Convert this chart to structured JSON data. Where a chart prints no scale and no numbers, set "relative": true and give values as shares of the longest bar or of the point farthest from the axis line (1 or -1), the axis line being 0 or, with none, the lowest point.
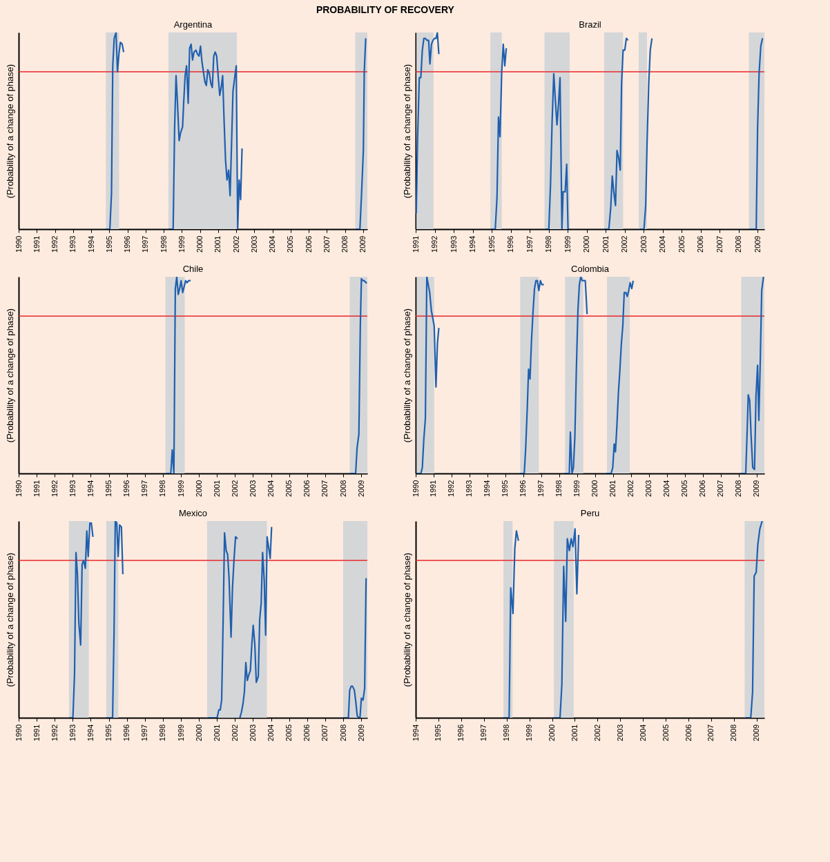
{
  "chart_data": [
    {
      "type": "line",
      "title": "Argentina",
      "ylabel": "(Probability of a change of phase)",
      "annotations": [
        "PROBABILITY OF RECOVERY"
      ],
      "relative": true,
      "xlim": [
        1990,
        2009.23
      ],
      "xticks": [
        1990,
        1991,
        1992,
        1993,
        1994,
        1995,
        1996,
        1997,
        1998,
        1999,
        2000,
        2001,
        2002,
        2003,
        2004,
        2005,
        2006,
        2007,
        2008,
        2009
      ],
      "series": [
        {
          "color": "#1f5fae",
          "x": [
            1994.78,
            1995.03,
            1995.12,
            1995.19,
            1995.27,
            1995.37,
            1995.45,
            1995.53,
            1995.61,
            1995.71,
            1995.79,
            1997.0,
            1998.26,
            1998.52,
            1998.6,
            1998.68,
            1998.76,
            1998.85,
            1998.93,
            1999.04,
            1999.1,
            1999.18,
            1999.26,
            1999.35,
            1999.43,
            1999.51,
            1999.59,
            1999.67,
            1999.78,
            1999.86,
            1999.95,
            2000.03,
            2000.11,
            2000.19,
            2000.27,
            2000.35,
            2000.43,
            2000.52,
            2000.6,
            2000.68,
            2000.76,
            2000.84,
            2000.92,
            2001.01,
            2001.09,
            2001.17,
            2001.25,
            2001.33,
            2001.41,
            2001.49,
            2001.58,
            2001.66,
            2001.74,
            2001.82,
            2001.9,
            2002.0,
            2002.08,
            2002.16,
            2002.24,
            2002.32,
            2005.0,
            2008.57,
            2008.82,
            2008.91,
            2009.01,
            2009.06,
            2009.14
          ],
          "values": [
            0,
            0,
            0.18,
            0.83,
            0.97,
            1.0,
            0.8,
            0.89,
            0.95,
            0.94,
            0.9,
            null,
            0,
            0,
            0.51,
            0.78,
            0.64,
            0.45,
            0.49,
            0.52,
            0.64,
            0.78,
            0.83,
            0.64,
            0.92,
            0.94,
            0.86,
            0.9,
            0.91,
            0.89,
            0.88,
            0.93,
            0.85,
            0.8,
            0.75,
            0.73,
            0.81,
            0.79,
            0.74,
            0.72,
            0.88,
            0.9,
            0.88,
            0.77,
            0.68,
            0.72,
            0.78,
            0.55,
            0.35,
            0.25,
            0.3,
            0.17,
            0.43,
            0.7,
            0.76,
            0.83,
            0,
            0.25,
            0.15,
            0.41,
            null,
            0,
            0,
            0.18,
            0.4,
            0.8,
            0.97
          ]
        }
      ],
      "ref_lines": [
        {
          "axis": "y",
          "value": 0.8,
          "color": "#e8262a"
        }
      ],
      "bands": [
        {
          "axis": "x",
          "from": 1994.81,
          "to": 1995.54,
          "color": "#d5d6d8"
        },
        {
          "axis": "x",
          "from": 1998.26,
          "to": 2002.04,
          "color": "#d5d6d8"
        },
        {
          "axis": "x",
          "from": 2008.56,
          "to": 2009.23,
          "color": "#d5d6d8"
        }
      ]
    },
    {
      "type": "line",
      "title": "Brazil",
      "ylabel": "(Probability of a change of phase)",
      "relative": true,
      "xlim": [
        1991,
        2009.36
      ],
      "xticks": [
        1991,
        1992,
        1993,
        1994,
        1995,
        1996,
        1997,
        1998,
        1999,
        2000,
        2001,
        2002,
        2003,
        2004,
        2005,
        2006,
        2007,
        2008,
        2009
      ],
      "series": [
        {
          "color": "#1f5fae",
          "x": [
            1991.03,
            1991.1,
            1991.19,
            1991.27,
            1991.35,
            1991.43,
            1991.51,
            1991.59,
            1991.68,
            1991.75,
            1991.83,
            1991.91,
            1991.99,
            1992.07,
            1992.14,
            1992.22,
            1993.5,
            1994.93,
            1995.19,
            1995.28,
            1995.36,
            1995.44,
            1995.53,
            1995.61,
            1995.69,
            1995.77,
            1996.5,
            1997.79,
            1998.01,
            1998.1,
            1998.18,
            1998.27,
            1998.35,
            1998.44,
            1998.52,
            1998.6,
            1998.7,
            1998.76,
            1998.87,
            1998.95,
            1999.02,
            1999.11,
            2000.0,
            2000.92,
            2001.17,
            2001.27,
            2001.35,
            2001.43,
            2001.52,
            2001.6,
            2001.69,
            2001.77,
            2001.84,
            2001.92,
            2002.01,
            2002.09,
            2002.18,
            2002.5,
            2002.77,
            2003.02,
            2003.11,
            2003.18,
            2003.27,
            2003.35,
            2003.44,
            2006.0,
            2008.54,
            2008.93,
            2009.0,
            2009.08,
            2009.17,
            2009.26
          ],
          "values": [
            0.08,
            0.46,
            0.77,
            0.77,
            0.91,
            0.97,
            0.97,
            0.96,
            0.96,
            0.84,
            0.94,
            0.96,
            0.97,
            0.97,
            1.0,
            0.89,
            null,
            0,
            0,
            0.16,
            0.57,
            0.47,
            0.8,
            0.94,
            0.83,
            0.92,
            null,
            0,
            0,
            0.23,
            0.54,
            0.79,
            0.66,
            0.53,
            0.64,
            0.77,
            0,
            0.19,
            0.19,
            0.33,
            0,
            0,
            null,
            0,
            0,
            0.11,
            0.27,
            0.19,
            0.12,
            0.4,
            0.36,
            0.3,
            0.74,
            0.91,
            0.91,
            0.97,
            0.96,
            null,
            0,
            0,
            0.12,
            0.43,
            0.74,
            0.91,
            0.97,
            null,
            0,
            0,
            0.51,
            0.79,
            0.93,
            0.97
          ]
        }
      ],
      "ref_lines": [
        {
          "axis": "y",
          "value": 0.8,
          "color": "#e8262a"
        }
      ],
      "bands": [
        {
          "axis": "x",
          "from": 1991.04,
          "to": 1991.94,
          "color": "#d5d6d8"
        },
        {
          "axis": "x",
          "from": 1994.93,
          "to": 1995.53,
          "color": "#d5d6d8"
        },
        {
          "axis": "x",
          "from": 1997.78,
          "to": 1999.11,
          "color": "#d5d6d8"
        },
        {
          "axis": "x",
          "from": 2000.92,
          "to": 2001.92,
          "color": "#d5d6d8"
        },
        {
          "axis": "x",
          "from": 2002.74,
          "to": 2003.18,
          "color": "#d5d6d8"
        },
        {
          "axis": "x",
          "from": 2008.54,
          "to": 2009.36,
          "color": "#d5d6d8"
        }
      ]
    },
    {
      "type": "line",
      "title": "Chile",
      "ylabel": "(Probability of a change of phase)",
      "relative": true,
      "xlim": [
        1990,
        2009.34
      ],
      "xticks": [
        1990,
        1991,
        1992,
        1993,
        1994,
        1995,
        1996,
        1997,
        1998,
        1999,
        2000,
        2001,
        2002,
        2003,
        2004,
        2005,
        2006,
        2007,
        2008,
        2009
      ],
      "series": [
        {
          "color": "#1f5fae",
          "x": [
            1998.14,
            1998.44,
            1998.52,
            1998.61,
            1998.69,
            1998.77,
            1998.85,
            1998.93,
            1999.01,
            1999.1,
            1999.18,
            1999.26,
            1999.34,
            1999.43,
            1999.54,
            2004.0,
            2008.36,
            2008.69,
            2008.77,
            2008.87,
            2008.95,
            2009.01,
            2009.09,
            2009.17,
            2009.26,
            2009.32
          ],
          "values": [
            0,
            0,
            0.12,
            0,
            0.94,
            1.0,
            0.91,
            0.94,
            0.98,
            0.92,
            0.95,
            0.98,
            0.97,
            0.98,
            0.98,
            null,
            0,
            0,
            0.13,
            0.2,
            0.75,
            0.99,
            0.98,
            0.98,
            0.97,
            0.97
          ]
        }
      ],
      "ref_lines": [
        {
          "axis": "y",
          "value": 0.8,
          "color": "#e8262a"
        }
      ],
      "bands": [
        {
          "axis": "x",
          "from": 1998.14,
          "to": 1999.21,
          "color": "#d5d6d8"
        },
        {
          "axis": "x",
          "from": 2008.36,
          "to": 2009.34,
          "color": "#d5d6d8"
        }
      ]
    },
    {
      "type": "line",
      "title": "Colombia",
      "ylabel": "(Probability of a change of phase)",
      "relative": true,
      "xlim": [
        1990,
        2009.43
      ],
      "xticks": [
        1990,
        1991,
        1992,
        1993,
        1994,
        1995,
        1996,
        1997,
        1998,
        1999,
        2000,
        2001,
        2002,
        2003,
        2004,
        2005,
        2006,
        2007,
        2008,
        2009
      ],
      "series": [
        {
          "color": "#1f5fae",
          "x": [
            1990.04,
            1990.29,
            1990.37,
            1990.45,
            1990.54,
            1990.62,
            1990.7,
            1990.78,
            1990.87,
            1990.95,
            1991.03,
            1991.13,
            1991.21,
            1991.29,
            1993.5,
            1995.8,
            1996.05,
            1996.13,
            1996.22,
            1996.29,
            1996.37,
            1996.45,
            1996.53,
            1996.62,
            1996.7,
            1996.78,
            1996.86,
            1996.95,
            1997.03,
            1997.14,
            1997.7,
            1998.28,
            1998.56,
            1998.62,
            1998.71,
            1998.79,
            1998.87,
            1998.95,
            1999.04,
            1999.12,
            1999.2,
            1999.28,
            1999.37,
            1999.45,
            1999.55,
            2000.1,
            2000.59,
            2000.89,
            2000.98,
            2001.06,
            2001.13,
            2001.21,
            2001.29,
            2001.38,
            2001.46,
            2001.54,
            2001.62,
            2001.71,
            2001.79,
            2001.87,
            2001.95,
            2002.04,
            2002.12,
            2005.0,
            2008.09,
            2008.39,
            2008.46,
            2008.53,
            2008.61,
            2008.69,
            2008.78,
            2008.88,
            2008.96,
            2009.05,
            2009.12,
            2009.2,
            2009.28,
            2009.38
          ],
          "values": [
            0,
            0,
            0.03,
            0.17,
            0.28,
            1.0,
            0.96,
            0.92,
            0.83,
            0.79,
            0.75,
            0.44,
            0.66,
            0.74,
            null,
            0,
            0,
            0.13,
            0.34,
            0.53,
            0.48,
            0.67,
            0.81,
            0.94,
            0.98,
            0.98,
            0.93,
            0.98,
            0.96,
            0.96,
            null,
            0,
            0,
            0.21,
            0,
            0.03,
            0.19,
            0.52,
            0.83,
            0.96,
            1.0,
            0.98,
            0.98,
            0.98,
            0.81,
            null,
            0,
            0,
            0.03,
            0.15,
            0.11,
            0.24,
            0.4,
            0.53,
            0.66,
            0.75,
            0.92,
            0.92,
            0.9,
            0.93,
            0.97,
            0.94,
            0.98,
            null,
            0,
            0,
            0.19,
            0.4,
            0.37,
            0.19,
            0.03,
            0.02,
            0.39,
            0.55,
            0.27,
            0.57,
            0.93,
            1.0
          ]
        }
      ],
      "ref_lines": [
        {
          "axis": "y",
          "value": 0.8,
          "color": "#e8262a"
        }
      ],
      "bands": [
        {
          "axis": "x",
          "from": 1990.06,
          "to": 1991.03,
          "color": "#d5d6d8"
        },
        {
          "axis": "x",
          "from": 1995.82,
          "to": 1996.86,
          "color": "#d5d6d8"
        },
        {
          "axis": "x",
          "from": 1998.32,
          "to": 1999.34,
          "color": "#d5d6d8"
        },
        {
          "axis": "x",
          "from": 2000.66,
          "to": 2001.93,
          "color": "#d5d6d8"
        },
        {
          "axis": "x",
          "from": 2008.14,
          "to": 2009.43,
          "color": "#d5d6d8"
        }
      ]
    },
    {
      "type": "line",
      "title": "Mexico",
      "ylabel": "(Probability of a change of phase)",
      "relative": true,
      "xlim": [
        1990,
        2009.34
      ],
      "xticks": [
        1990,
        1991,
        1992,
        1993,
        1994,
        1995,
        1996,
        1997,
        1998,
        1999,
        2000,
        2001,
        2002,
        2003,
        2004,
        2005,
        2006,
        2007,
        2008,
        2009
      ],
      "series": [
        {
          "color": "#1f5fae",
          "x": [
            1992.79,
            1993.01,
            1993.1,
            1993.18,
            1993.26,
            1993.34,
            1993.44,
            1993.52,
            1993.6,
            1993.7,
            1993.78,
            1993.86,
            1993.95,
            1994.03,
            1994.12,
            1994.5,
            1994.86,
            1995.21,
            1995.29,
            1995.36,
            1995.44,
            1995.52,
            1995.6,
            1995.7,
            1995.78,
            1998.0,
            2000.47,
            2001.01,
            2001.1,
            2001.18,
            2001.26,
            2001.34,
            2001.42,
            2001.51,
            2001.59,
            2001.67,
            2001.78,
            2001.86,
            2001.95,
            2002.03,
            2002.14,
            2002.2,
            2002.27,
            2002.36,
            2002.44,
            2002.52,
            2002.6,
            2002.68,
            2002.77,
            2002.85,
            2002.93,
            2003.01,
            2003.1,
            2003.18,
            2003.29,
            2003.37,
            2003.45,
            2003.53,
            2003.62,
            2003.7,
            2003.78,
            2003.86,
            2003.95,
            2004.03,
            2006.0,
            2008.0,
            2008.29,
            2008.36,
            2008.44,
            2008.52,
            2008.62,
            2008.7,
            2008.78,
            2008.86,
            2008.93,
            2009.01,
            2009.1,
            2009.19,
            2009.27
          ],
          "values": [
            0,
            0,
            0.22,
            0.84,
            0.73,
            0.48,
            0.37,
            0.78,
            0.8,
            0.76,
            0.95,
            0.82,
            0.99,
            0.99,
            0.92,
            null,
            0,
            0,
            0.43,
            1.0,
            0.99,
            0.82,
            0.98,
            0.97,
            0.73,
            null,
            0,
            0,
            0.04,
            0.04,
            0.09,
            0.49,
            0.94,
            0.85,
            0.83,
            0.71,
            0.41,
            0.66,
            0.81,
            0.92,
            0.91,
            null,
            0,
            0.03,
            0.07,
            0.13,
            0.28,
            0.19,
            0.22,
            0.24,
            0.37,
            0.47,
            0.37,
            0.18,
            0.21,
            0.5,
            0.58,
            0.84,
            0.7,
            0.42,
            0.92,
            0.87,
            0.81,
            0.97,
            null,
            0,
            0,
            0.14,
            0.16,
            0.16,
            0.14,
            0.08,
            0.01,
            0,
            0,
            0.1,
            0.09,
            0.15,
            0.71
          ]
        }
      ],
      "ref_lines": [
        {
          "axis": "y",
          "value": 0.8,
          "color": "#e8262a"
        }
      ],
      "bands": [
        {
          "axis": "x",
          "from": 1992.79,
          "to": 1993.89,
          "color": "#d5d6d8"
        },
        {
          "axis": "x",
          "from": 1994.86,
          "to": 1995.53,
          "color": "#d5d6d8"
        },
        {
          "axis": "x",
          "from": 2000.45,
          "to": 2003.77,
          "color": "#d5d6d8"
        },
        {
          "axis": "x",
          "from": 2008.0,
          "to": 2009.34,
          "color": "#d5d6d8"
        }
      ]
    },
    {
      "type": "line",
      "title": "Peru",
      "ylabel": "(Probability of a change of phase)",
      "relative": true,
      "xlim": [
        1994,
        2009.34
      ],
      "xticks": [
        1994,
        1995,
        1996,
        1997,
        1998,
        1999,
        2000,
        2001,
        2002,
        2003,
        2004,
        2005,
        2006,
        2007,
        2008,
        2009
      ],
      "series": [
        {
          "color": "#1f5fae",
          "x": [
            1997.84,
            1998.11,
            1998.18,
            1998.28,
            1998.36,
            1998.43,
            1998.52,
            1999.3,
            2000.08,
            2000.35,
            2000.43,
            2000.51,
            2000.6,
            2000.67,
            2000.76,
            2000.84,
            2000.92,
            2001.01,
            2001.09,
            2001.17,
            2005.0,
            2008.48,
            2008.74,
            2008.82,
            2008.89,
            2008.98,
            2009.05,
            2009.14,
            2009.24
          ],
          "values": [
            0,
            0,
            0.66,
            0.53,
            0.86,
            0.95,
            0.9,
            null,
            0,
            0,
            0.17,
            0.77,
            0.49,
            0.91,
            0.85,
            0.91,
            0.87,
            0.96,
            0.63,
            0.93,
            null,
            0,
            0,
            0.13,
            0.72,
            0.74,
            0.88,
            0.96,
            1.0
          ]
        }
      ],
      "ref_lines": [
        {
          "axis": "y",
          "value": 0.8,
          "color": "#e8262a"
        }
      ],
      "bands": [
        {
          "axis": "x",
          "from": 1997.86,
          "to": 1998.26,
          "color": "#d5d6d8"
        },
        {
          "axis": "x",
          "from": 2000.08,
          "to": 2000.95,
          "color": "#d5d6d8"
        },
        {
          "axis": "x",
          "from": 2008.47,
          "to": 2009.34,
          "color": "#d5d6d8"
        }
      ]
    }
  ]
}
